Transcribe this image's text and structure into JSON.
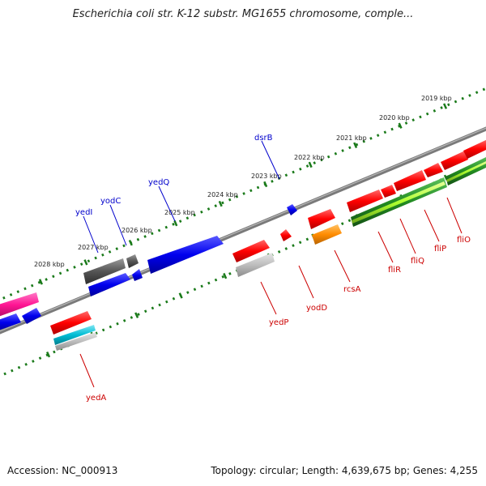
{
  "header": {
    "title": "Escherichia coli str. K-12 substr. MG1655 chromosome, comple..."
  },
  "footer": {
    "accession": "Accession: NC_000913",
    "stats": "Topology: circular; Length: 4,639,675 bp; Genes: 4,255"
  },
  "colors": {
    "forward_gene": "#ff0000",
    "forward_pseudo": "#ff8c00",
    "forward_operon": "#228b22",
    "forward_operon_light": "#adff2f",
    "reverse_gene": "#0000ee",
    "reverse_gray": "#555555",
    "reverse_pink": "#ff1493",
    "reverse_cyan": "#00bcd4",
    "backbone": "#777777",
    "tick": "#1a7a1a",
    "upper_label": "#0000cc",
    "lower_label": "#cc0000"
  },
  "scale_labels": [
    "2019 kbp",
    "2020 kbp",
    "2021 kbp",
    "2022 kbp",
    "2023 kbp",
    "2024 kbp",
    "2025 kbp",
    "2026 kbp",
    "2027 kbp",
    "2028 kbp"
  ],
  "upper_genes": [
    "dsrB",
    "yedQ",
    "yodC",
    "yedI"
  ],
  "lower_genes": [
    "fliO",
    "fliP",
    "fliQ",
    "fliR",
    "rcsA",
    "yodD",
    "yedP",
    "yedA"
  ]
}
